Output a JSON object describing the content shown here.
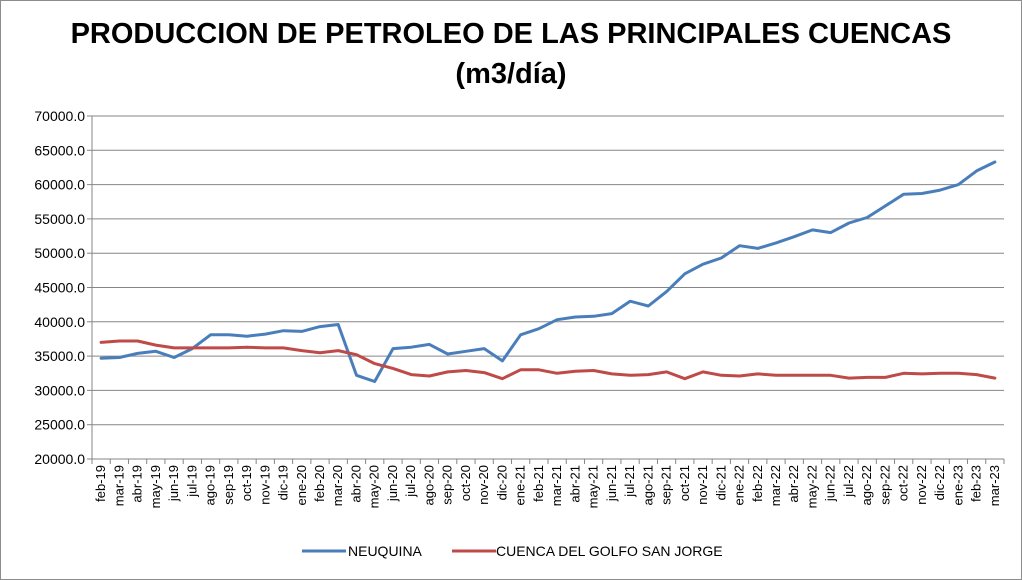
{
  "chart_data": {
    "type": "line",
    "title_line1": "PRODUCCION DE PETROLEO DE LAS PRINCIPALES CUENCAS",
    "title_line2": "(m3/día)",
    "ylim": [
      20000,
      70000
    ],
    "y_ticks": [
      "20000.0",
      "25000.0",
      "30000.0",
      "35000.0",
      "40000.0",
      "45000.0",
      "50000.0",
      "55000.0",
      "60000.0",
      "65000.0",
      "70000.0"
    ],
    "grid": true,
    "legend_position": "bottom",
    "categories": [
      "feb-19",
      "mar-19",
      "abr-19",
      "may-19",
      "jun-19",
      "jul-19",
      "ago-19",
      "sep-19",
      "oct-19",
      "nov-19",
      "dic-19",
      "ene-20",
      "feb-20",
      "mar-20",
      "abr-20",
      "may-20",
      "jun-20",
      "jul-20",
      "ago-20",
      "sep-20",
      "oct-20",
      "nov-20",
      "dic-20",
      "ene-21",
      "feb-21",
      "mar-21",
      "abr-21",
      "may-21",
      "jun-21",
      "jul-21",
      "ago-21",
      "sep-21",
      "oct-21",
      "nov-21",
      "dic-21",
      "ene-22",
      "feb-22",
      "mar-22",
      "abr-22",
      "may-22",
      "jun-22",
      "jul-22",
      "ago-22",
      "sep-22",
      "oct-22",
      "nov-22",
      "dic-22",
      "ene-23",
      "feb-23",
      "mar-23"
    ],
    "series": [
      {
        "name": "NEUQUINA",
        "color": "#4a7ebb",
        "values": [
          34700,
          34800,
          35400,
          35700,
          34800,
          36100,
          38100,
          38100,
          37900,
          38200,
          38700,
          38600,
          39300,
          39600,
          32200,
          31300,
          36100,
          36300,
          36700,
          35300,
          35700,
          36100,
          34300,
          38100,
          39000,
          40300,
          40700,
          40800,
          41200,
          43000,
          42300,
          44400,
          47000,
          48400,
          49300,
          51100,
          50700,
          51500,
          52400,
          53400,
          53000,
          54400,
          55200,
          56900,
          58600,
          58700,
          59200,
          60000,
          62000,
          63300
        ]
      },
      {
        "name": "CUENCA DEL GOLFO SAN JORGE",
        "color": "#be4b48",
        "values": [
          37000,
          37200,
          37200,
          36600,
          36200,
          36200,
          36200,
          36200,
          36300,
          36200,
          36200,
          35800,
          35500,
          35800,
          35200,
          33900,
          33200,
          32300,
          32100,
          32700,
          32900,
          32600,
          31700,
          33000,
          33000,
          32500,
          32800,
          32900,
          32400,
          32200,
          32300,
          32700,
          31700,
          32700,
          32200,
          32100,
          32400,
          32200,
          32200,
          32200,
          32200,
          31800,
          31900,
          31900,
          32500,
          32400,
          32500,
          32500,
          32300,
          31800
        ]
      }
    ]
  }
}
